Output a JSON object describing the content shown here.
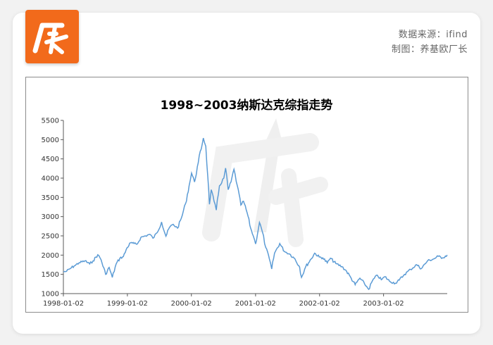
{
  "header": {
    "logo_text": "厂长",
    "source": "数据来源：ifind",
    "maker": "制图：养基欧厂长"
  },
  "colors": {
    "brand": "#f26a1b",
    "line": "#5b9bd5",
    "axis": "#595959",
    "watermark": "#eeeeee"
  },
  "watermark": {
    "text": "厂长",
    "icon": "arrow-up-icon"
  },
  "chart_data": {
    "type": "line",
    "title": "1998~2003纳斯达克综指走势",
    "xlabel": "",
    "ylabel": "",
    "ylim": [
      1000,
      5500
    ],
    "yticks": [
      1000,
      1500,
      2000,
      2500,
      3000,
      3500,
      4000,
      4500,
      5000,
      5500
    ],
    "xlim": [
      "1998-01-02",
      "2003-12-31"
    ],
    "xticks": [
      "1998-01-02",
      "1999-01-02",
      "2000-01-02",
      "2001-01-02",
      "2002-01-02",
      "2003-01-02"
    ],
    "grid": false,
    "legend": "none",
    "series": [
      {
        "name": "",
        "points": [
          [
            "1998-01-02",
            1570
          ],
          [
            "1998-01-20",
            1580
          ],
          [
            "1998-02-10",
            1650
          ],
          [
            "1998-03-05",
            1720
          ],
          [
            "1998-04-01",
            1800
          ],
          [
            "1998-05-05",
            1850
          ],
          [
            "1998-06-01",
            1770
          ],
          [
            "1998-06-20",
            1850
          ],
          [
            "1998-07-17",
            2010
          ],
          [
            "1998-08-05",
            1880
          ],
          [
            "1998-08-31",
            1500
          ],
          [
            "1998-09-20",
            1680
          ],
          [
            "1998-10-08",
            1420
          ],
          [
            "1998-10-30",
            1770
          ],
          [
            "1998-11-20",
            1920
          ],
          [
            "1998-12-10",
            1960
          ],
          [
            "1998-12-31",
            2190
          ],
          [
            "1999-01-20",
            2320
          ],
          [
            "1999-02-09",
            2300
          ],
          [
            "1999-02-25",
            2280
          ],
          [
            "1999-03-20",
            2460
          ],
          [
            "1999-04-15",
            2500
          ],
          [
            "1999-05-10",
            2540
          ],
          [
            "1999-05-28",
            2440
          ],
          [
            "1999-06-20",
            2580
          ],
          [
            "1999-07-16",
            2860
          ],
          [
            "1999-08-10",
            2490
          ],
          [
            "1999-08-30",
            2720
          ],
          [
            "1999-09-20",
            2800
          ],
          [
            "1999-10-15",
            2700
          ],
          [
            "1999-11-05",
            2950
          ],
          [
            "1999-11-30",
            3340
          ],
          [
            "1999-12-20",
            3800
          ],
          [
            "2000-01-03",
            4130
          ],
          [
            "2000-01-20",
            3900
          ],
          [
            "2000-02-10",
            4400
          ],
          [
            "2000-03-10",
            5040
          ],
          [
            "2000-03-24",
            4830
          ],
          [
            "2000-04-05",
            4000
          ],
          [
            "2000-04-14",
            3320
          ],
          [
            "2000-04-24",
            3700
          ],
          [
            "2000-05-10",
            3400
          ],
          [
            "2000-05-23",
            3170
          ],
          [
            "2000-06-10",
            3800
          ],
          [
            "2000-07-05",
            4000
          ],
          [
            "2000-07-15",
            4260
          ],
          [
            "2000-07-30",
            3700
          ],
          [
            "2000-08-15",
            3900
          ],
          [
            "2000-09-01",
            4230
          ],
          [
            "2000-09-20",
            3800
          ],
          [
            "2000-10-10",
            3300
          ],
          [
            "2000-10-25",
            3400
          ],
          [
            "2000-11-15",
            3100
          ],
          [
            "2000-12-05",
            2700
          ],
          [
            "2000-12-20",
            2500
          ],
          [
            "2001-01-02",
            2290
          ],
          [
            "2001-01-24",
            2850
          ],
          [
            "2001-02-10",
            2600
          ],
          [
            "2001-03-01",
            2200
          ],
          [
            "2001-03-22",
            1900
          ],
          [
            "2001-04-04",
            1640
          ],
          [
            "2001-04-20",
            2050
          ],
          [
            "2001-05-20",
            2300
          ],
          [
            "2001-06-15",
            2100
          ],
          [
            "2001-07-15",
            2030
          ],
          [
            "2001-08-15",
            1900
          ],
          [
            "2001-09-10",
            1690
          ],
          [
            "2001-09-21",
            1420
          ],
          [
            "2001-10-15",
            1700
          ],
          [
            "2001-11-15",
            1900
          ],
          [
            "2001-12-05",
            2050
          ],
          [
            "2001-12-31",
            1950
          ],
          [
            "2002-01-20",
            1930
          ],
          [
            "2002-02-15",
            1800
          ],
          [
            "2002-03-05",
            1920
          ],
          [
            "2002-04-05",
            1780
          ],
          [
            "2002-05-10",
            1700
          ],
          [
            "2002-06-05",
            1580
          ],
          [
            "2002-07-01",
            1400
          ],
          [
            "2002-07-24",
            1230
          ],
          [
            "2002-08-20",
            1400
          ],
          [
            "2002-09-15",
            1260
          ],
          [
            "2002-10-09",
            1110
          ],
          [
            "2002-10-30",
            1330
          ],
          [
            "2002-11-27",
            1480
          ],
          [
            "2002-12-20",
            1360
          ],
          [
            "2003-01-10",
            1440
          ],
          [
            "2003-02-05",
            1320
          ],
          [
            "2003-03-11",
            1270
          ],
          [
            "2003-04-01",
            1350
          ],
          [
            "2003-05-01",
            1500
          ],
          [
            "2003-06-05",
            1630
          ],
          [
            "2003-07-10",
            1750
          ],
          [
            "2003-08-05",
            1650
          ],
          [
            "2003-09-10",
            1850
          ],
          [
            "2003-10-15",
            1900
          ],
          [
            "2003-11-10",
            1970
          ],
          [
            "2003-12-05",
            1930
          ],
          [
            "2003-12-31",
            2003
          ]
        ]
      }
    ]
  }
}
